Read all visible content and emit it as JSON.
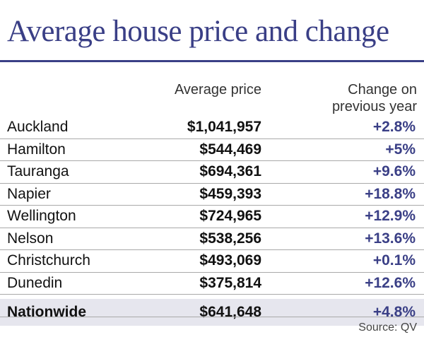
{
  "chart_data": {
    "type": "table",
    "title": "Average house price and change",
    "columns": [
      "",
      "Average price",
      "Change on previous year"
    ],
    "column_headers": {
      "price": "Average price",
      "change_line1": "Change on",
      "change_line2": "previous year"
    },
    "rows": [
      {
        "city": "Auckland",
        "price": "$1,041,957",
        "change": "+2.8%"
      },
      {
        "city": "Hamilton",
        "price": "$544,469",
        "change": "+5%"
      },
      {
        "city": "Tauranga",
        "price": "$694,361",
        "change": "+9.6%"
      },
      {
        "city": "Napier",
        "price": "$459,393",
        "change": "+18.8%"
      },
      {
        "city": "Wellington",
        "price": "$724,965",
        "change": "+12.9%"
      },
      {
        "city": "Nelson",
        "price": "$538,256",
        "change": "+13.6%"
      },
      {
        "city": "Christchurch",
        "price": "$493,069",
        "change": "+0.1%"
      },
      {
        "city": "Dunedin",
        "price": "$375,814",
        "change": "+12.6%"
      }
    ],
    "summary": {
      "city": "Nationwide",
      "price": "$641,648",
      "change": "+4.8%"
    },
    "source": "Source: QV"
  },
  "colors": {
    "accent": "#3a3f86",
    "summary_background": "#e6e6ee",
    "rule": "#a9a9a9"
  }
}
